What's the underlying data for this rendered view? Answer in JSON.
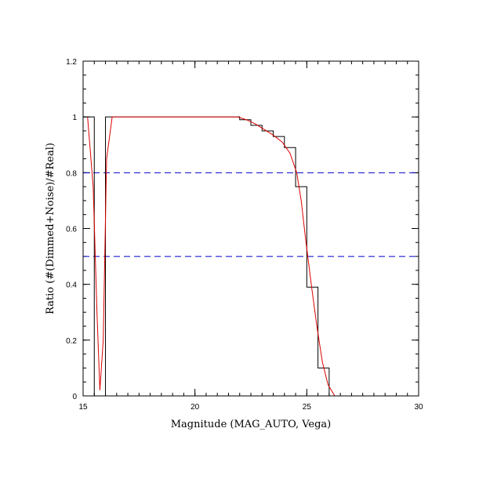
{
  "chart_data": {
    "type": "line",
    "title": "",
    "xlabel": "Magnitude (MAG_AUTO, Vega)",
    "ylabel": "Ratio (#(Dimmed+Noise)/#Real)",
    "xlim": [
      15,
      30
    ],
    "ylim": [
      0,
      1.2
    ],
    "x_ticks": [
      15,
      20,
      25,
      30
    ],
    "x_tick_labels": [
      "15",
      "20",
      "25",
      "30"
    ],
    "y_ticks": [
      0,
      0.2,
      0.4,
      0.6,
      0.8,
      1.0,
      1.2
    ],
    "y_tick_labels": [
      "0",
      "0.2",
      "0.4",
      "0.6",
      "0.8",
      "1",
      "1.2"
    ],
    "grid": false,
    "legend": "none",
    "series": [
      {
        "style": "step-histogram",
        "color": "#000000",
        "bin_width": 0.5,
        "bin_starts": [
          15.0,
          15.5,
          16.0,
          16.5,
          17.0,
          17.5,
          18.0,
          18.5,
          19.0,
          19.5,
          20.0,
          20.5,
          21.0,
          21.5,
          22.0,
          22.5,
          23.0,
          23.5,
          24.0,
          24.5,
          25.0,
          25.5,
          26.0,
          26.5,
          27.0,
          27.5,
          28.0,
          28.5,
          29.0,
          29.5
        ],
        "values": [
          1.0,
          0.0,
          1.0,
          1.0,
          1.0,
          1.0,
          1.0,
          1.0,
          1.0,
          1.0,
          1.0,
          1.0,
          1.0,
          1.0,
          0.99,
          0.97,
          0.95,
          0.93,
          0.89,
          0.75,
          0.39,
          0.1,
          0.0,
          0.0,
          0.0,
          0.0,
          0.0,
          0.0,
          0.0,
          0.0
        ]
      },
      {
        "style": "smooth-line",
        "color": "#dd0000",
        "x": [
          15.2,
          15.45,
          15.62,
          15.75,
          15.9,
          16.05,
          16.3,
          17.0,
          18.0,
          19.0,
          20.0,
          21.0,
          21.9,
          22.3,
          22.7,
          23.1,
          23.5,
          23.9,
          24.25,
          24.55,
          24.75,
          24.95,
          25.2,
          25.45,
          25.7,
          25.95,
          26.25,
          27.0,
          28.0,
          29.0,
          30.0
        ],
        "y": [
          1.0,
          0.75,
          0.3,
          0.02,
          0.2,
          0.85,
          1.0,
          1.0,
          1.0,
          1.0,
          1.0,
          1.0,
          1.0,
          0.99,
          0.975,
          0.955,
          0.935,
          0.91,
          0.87,
          0.8,
          0.7,
          0.56,
          0.4,
          0.25,
          0.12,
          0.04,
          0.0,
          0.0,
          0.0,
          0.0,
          0.0
        ]
      }
    ],
    "reference_lines": [
      {
        "y": 0.8,
        "color": "#0000cc",
        "style": "dashed"
      },
      {
        "y": 0.5,
        "color": "#0000cc",
        "style": "dashed"
      }
    ]
  }
}
